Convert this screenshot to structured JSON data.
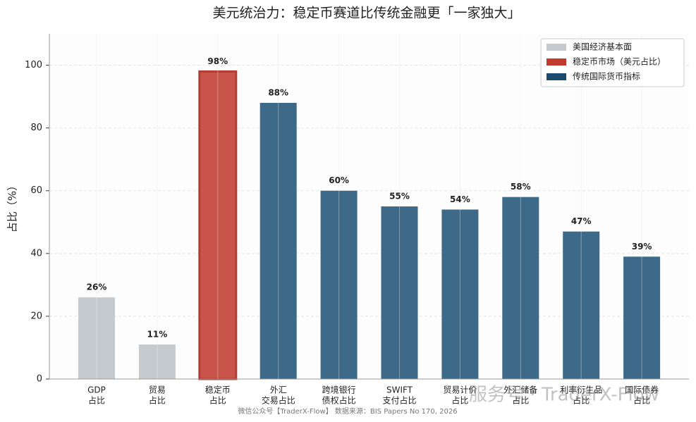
{
  "chart_data": {
    "type": "bar",
    "title": "美元统治力：稳定币赛道比传统金融更「一家独大」",
    "y_label": "占比（%）",
    "categories": [
      [
        "GDP",
        "占比"
      ],
      [
        "贸易",
        "占比"
      ],
      [
        "稳定币",
        "占比"
      ],
      [
        "外汇",
        "交易占比"
      ],
      [
        "跨境银行",
        "债权占比"
      ],
      [
        "SWIFT",
        "支付占比"
      ],
      [
        "贸易计价",
        "占比"
      ],
      [
        "外汇储备",
        "占比"
      ],
      [
        "利率衍生品",
        "占比"
      ],
      [
        "国际债券",
        "占比"
      ]
    ],
    "values": [
      26,
      11,
      98,
      88,
      60,
      55,
      54,
      58,
      47,
      39
    ],
    "value_labels": [
      "26%",
      "11%",
      "98%",
      "88%",
      "60%",
      "55%",
      "54%",
      "58%",
      "47%",
      "39%"
    ],
    "colors": [
      "#c5cacf",
      "#c5cacf",
      "#c9544a",
      "#3e6a8a",
      "#3e6a8a",
      "#3e6a8a",
      "#3e6a8a",
      "#3e6a8a",
      "#3e6a8a",
      "#3e6a8a"
    ],
    "legend": [
      {
        "name": "美国经济基本面",
        "color": "#c5cacf"
      },
      {
        "name": "稳定币市场（美元占比）",
        "color": "#c0392b"
      },
      {
        "name": "传统国际货币指标",
        "color": "#1a4a6e"
      }
    ],
    "legend_position": "upper right",
    "ylim": [
      0,
      110
    ],
    "yticks": [
      0,
      20,
      40,
      60,
      80,
      100
    ],
    "grid": true,
    "footnote": "微信公众号【TraderX-Flow】   数据来源：BIS Papers No 170, 2026",
    "watermark": "服务号 · TraderX-Flow"
  }
}
